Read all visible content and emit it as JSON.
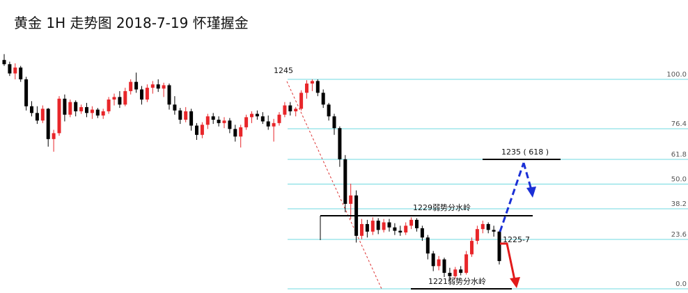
{
  "chart_data": {
    "type": "candlestick",
    "title": "黄金 1H 走势图 2018-7-19 怀瑾握金",
    "up_color": "#e8262a",
    "down_color": "#000000",
    "fib_color": "#6fd9e0",
    "fib_range": [
      1220.1,
      1245
    ],
    "fib_levels": [
      {
        "value": 100,
        "label": "100.0"
      },
      76.4,
      61.8,
      {
        "value": 50,
        "label": "50.0"
      },
      38.2,
      23.6,
      {
        "value": 0,
        "label": "0.0"
      }
    ],
    "annotations": [
      "1245",
      "1235 ( 618 )",
      "1229弱势分水岭",
      "1225-7",
      "1221弱势分水岭"
    ],
    "ohlc": [
      [
        1247.3,
        1248.0,
        1246.6,
        1246.8
      ],
      [
        1246.8,
        1247.1,
        1245.4,
        1245.7
      ],
      [
        1245.7,
        1246.9,
        1245.0,
        1246.4
      ],
      [
        1246.4,
        1246.6,
        1244.7,
        1245.0
      ],
      [
        1245.0,
        1245.3,
        1241.3,
        1241.8
      ],
      [
        1241.8,
        1242.4,
        1240.6,
        1241.0
      ],
      [
        1241.0,
        1241.8,
        1239.7,
        1240.1
      ],
      [
        1240.1,
        1241.9,
        1239.8,
        1241.5
      ],
      [
        1241.5,
        1241.6,
        1237.0,
        1237.9
      ],
      [
        1237.9,
        1239.0,
        1236.4,
        1238.6
      ],
      [
        1238.6,
        1243.0,
        1238.3,
        1242.7
      ],
      [
        1242.7,
        1243.2,
        1240.0,
        1240.8
      ],
      [
        1240.8,
        1242.6,
        1240.5,
        1242.3
      ],
      [
        1242.3,
        1242.5,
        1240.6,
        1241.2
      ],
      [
        1241.2,
        1242.0,
        1240.9,
        1241.7
      ],
      [
        1241.7,
        1242.2,
        1240.5,
        1241.0
      ],
      [
        1241.0,
        1241.8,
        1240.3,
        1241.4
      ],
      [
        1241.4,
        1241.6,
        1240.4,
        1240.7
      ],
      [
        1240.7,
        1241.5,
        1240.3,
        1241.2
      ],
      [
        1241.2,
        1242.9,
        1240.9,
        1242.6
      ],
      [
        1242.6,
        1243.3,
        1241.9,
        1242.9
      ],
      [
        1242.9,
        1243.6,
        1241.6,
        1242.0
      ],
      [
        1242.0,
        1244.0,
        1241.8,
        1243.6
      ],
      [
        1243.6,
        1245.0,
        1243.2,
        1244.7
      ],
      [
        1244.7,
        1245.8,
        1243.4,
        1243.8
      ],
      [
        1243.8,
        1244.2,
        1242.0,
        1242.6
      ],
      [
        1242.6,
        1244.4,
        1242.3,
        1244.0
      ],
      [
        1244.0,
        1244.8,
        1243.3,
        1244.4
      ],
      [
        1244.4,
        1245.0,
        1243.5,
        1243.9
      ],
      [
        1243.9,
        1244.6,
        1242.9,
        1244.3
      ],
      [
        1244.3,
        1244.5,
        1241.4,
        1242.0
      ],
      [
        1242.0,
        1243.0,
        1240.8,
        1241.3
      ],
      [
        1241.3,
        1241.6,
        1239.7,
        1240.2
      ],
      [
        1240.2,
        1241.7,
        1239.9,
        1241.2
      ],
      [
        1241.2,
        1241.5,
        1238.9,
        1239.5
      ],
      [
        1239.5,
        1239.8,
        1237.8,
        1238.4
      ],
      [
        1238.4,
        1239.9,
        1238.0,
        1239.6
      ],
      [
        1239.6,
        1240.9,
        1239.1,
        1240.6
      ],
      [
        1240.6,
        1241.0,
        1239.7,
        1240.2
      ],
      [
        1240.2,
        1240.6,
        1239.4,
        1239.8
      ],
      [
        1239.8,
        1240.5,
        1239.2,
        1240.1
      ],
      [
        1240.1,
        1240.4,
        1238.6,
        1239.1
      ],
      [
        1239.1,
        1239.6,
        1237.6,
        1238.2
      ],
      [
        1238.2,
        1239.6,
        1236.9,
        1239.3
      ],
      [
        1239.3,
        1240.8,
        1239.0,
        1240.5
      ],
      [
        1240.5,
        1241.2,
        1239.8,
        1240.9
      ],
      [
        1240.9,
        1241.3,
        1240.2,
        1240.6
      ],
      [
        1240.6,
        1241.1,
        1239.7,
        1240.0
      ],
      [
        1240.0,
        1240.7,
        1239.0,
        1239.4
      ],
      [
        1239.4,
        1240.3,
        1237.6,
        1239.8
      ],
      [
        1239.8,
        1241.1,
        1239.5,
        1240.8
      ],
      [
        1240.8,
        1242.3,
        1240.5,
        1241.9
      ],
      [
        1241.9,
        1242.3,
        1240.7,
        1241.2
      ],
      [
        1241.2,
        1241.7,
        1240.6,
        1241.5
      ],
      [
        1241.5,
        1243.7,
        1241.3,
        1243.4
      ],
      [
        1243.4,
        1244.9,
        1242.7,
        1244.5
      ],
      [
        1244.5,
        1245.0,
        1243.6,
        1244.8
      ],
      [
        1244.8,
        1245.0,
        1243.0,
        1243.4
      ],
      [
        1243.4,
        1243.8,
        1241.6,
        1242.0
      ],
      [
        1242.0,
        1242.2,
        1240.1,
        1240.6
      ],
      [
        1240.6,
        1240.9,
        1238.4,
        1239.2
      ],
      [
        1239.2,
        1239.4,
        1234.6,
        1235.5
      ],
      [
        1235.5,
        1236.0,
        1229.2,
        1230.2
      ],
      [
        1230.2,
        1232.6,
        1228.4,
        1231.2
      ],
      [
        1231.2,
        1231.8,
        1225.6,
        1226.4
      ],
      [
        1226.4,
        1228.4,
        1226.0,
        1227.8
      ],
      [
        1227.8,
        1228.3,
        1226.2,
        1226.9
      ],
      [
        1226.9,
        1228.6,
        1226.5,
        1228.2
      ],
      [
        1228.2,
        1228.5,
        1226.6,
        1227.1
      ],
      [
        1227.1,
        1228.4,
        1226.8,
        1228.0
      ],
      [
        1228.0,
        1228.4,
        1226.9,
        1227.4
      ],
      [
        1227.4,
        1227.9,
        1226.5,
        1227.0
      ],
      [
        1227.0,
        1227.6,
        1226.4,
        1226.8
      ],
      [
        1226.8,
        1228.0,
        1226.5,
        1227.6
      ],
      [
        1227.6,
        1228.6,
        1227.2,
        1228.3
      ],
      [
        1228.3,
        1228.5,
        1226.9,
        1227.3
      ],
      [
        1227.3,
        1227.6,
        1225.8,
        1226.2
      ],
      [
        1226.2,
        1226.5,
        1223.6,
        1224.3
      ],
      [
        1224.3,
        1224.6,
        1222.2,
        1222.8
      ],
      [
        1222.8,
        1224.0,
        1222.3,
        1223.6
      ],
      [
        1223.6,
        1223.8,
        1221.5,
        1222.0
      ],
      [
        1222.0,
        1222.6,
        1221.0,
        1221.6
      ],
      [
        1221.6,
        1222.7,
        1221.3,
        1222.4
      ],
      [
        1222.4,
        1222.8,
        1221.7,
        1222.0
      ],
      [
        1222.0,
        1224.6,
        1221.8,
        1224.2
      ],
      [
        1224.2,
        1226.2,
        1223.9,
        1225.8
      ],
      [
        1225.8,
        1227.6,
        1225.4,
        1227.2
      ],
      [
        1227.2,
        1228.2,
        1226.7,
        1227.8
      ],
      [
        1227.8,
        1228.0,
        1226.7,
        1227.1
      ],
      [
        1227.1,
        1227.6,
        1226.3,
        1226.9
      ],
      [
        1226.9,
        1227.0,
        1223.0,
        1223.4
      ]
    ]
  }
}
